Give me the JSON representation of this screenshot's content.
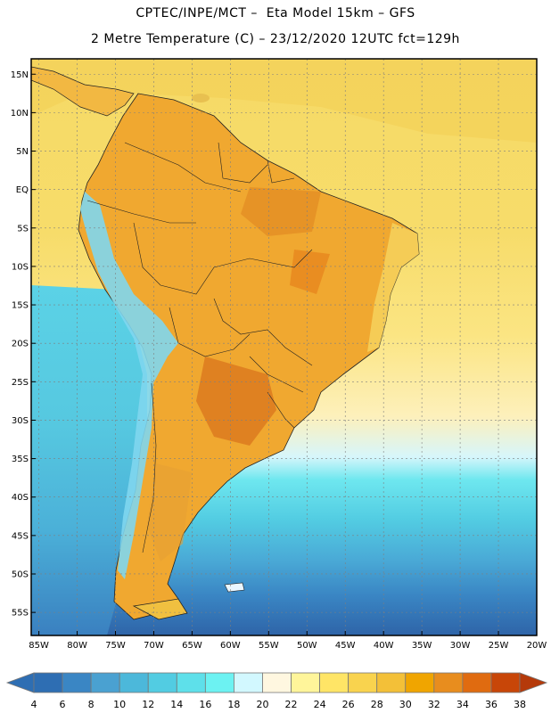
{
  "header": {
    "line1": "CPTEC/INPE/MCT –  Eta Model 15km – GFS",
    "line2": "2 Metre Temperature (C) – 23/12/2020 12UTC fct=129h"
  },
  "map": {
    "lon_range": [
      -86,
      -20
    ],
    "lat_range": [
      -58,
      17
    ],
    "lat_ticks": [
      {
        "value": 15,
        "label": "15N"
      },
      {
        "value": 10,
        "label": "10N"
      },
      {
        "value": 5,
        "label": "5N"
      },
      {
        "value": 0,
        "label": "EQ"
      },
      {
        "value": -5,
        "label": "5S"
      },
      {
        "value": -10,
        "label": "10S"
      },
      {
        "value": -15,
        "label": "15S"
      },
      {
        "value": -20,
        "label": "20S"
      },
      {
        "value": -25,
        "label": "25S"
      },
      {
        "value": -30,
        "label": "30S"
      },
      {
        "value": -35,
        "label": "35S"
      },
      {
        "value": -40,
        "label": "40S"
      },
      {
        "value": -45,
        "label": "45S"
      },
      {
        "value": -50,
        "label": "50S"
      },
      {
        "value": -55,
        "label": "55S"
      }
    ],
    "lon_ticks": [
      {
        "value": -85,
        "label": "85W"
      },
      {
        "value": -80,
        "label": "80W"
      },
      {
        "value": -75,
        "label": "75W"
      },
      {
        "value": -70,
        "label": "70W"
      },
      {
        "value": -65,
        "label": "65W"
      },
      {
        "value": -60,
        "label": "60W"
      },
      {
        "value": -55,
        "label": "55W"
      },
      {
        "value": -50,
        "label": "50W"
      },
      {
        "value": -45,
        "label": "45W"
      },
      {
        "value": -40,
        "label": "40W"
      },
      {
        "value": -35,
        "label": "35W"
      },
      {
        "value": -30,
        "label": "30W"
      },
      {
        "value": -25,
        "label": "25W"
      },
      {
        "value": -20,
        "label": "20W"
      }
    ]
  },
  "colorbar": {
    "labels": [
      "4",
      "6",
      "8",
      "10",
      "12",
      "14",
      "16",
      "18",
      "20",
      "22",
      "24",
      "26",
      "28",
      "30",
      "32",
      "34",
      "36",
      "38"
    ],
    "below_color": "#2e6eb3",
    "above_color": "#b53a0a",
    "colors": [
      "#2e6eb3",
      "#3a86c4",
      "#4aa1d1",
      "#4cb8da",
      "#52cce2",
      "#5ee0ea",
      "#6cf2f2",
      "#d2f8ff",
      "#fff7e0",
      "#fff59a",
      "#ffe566",
      "#f9d34e",
      "#f3c038",
      "#f0a500",
      "#e88d1e",
      "#e06b10",
      "#c84608"
    ]
  }
}
